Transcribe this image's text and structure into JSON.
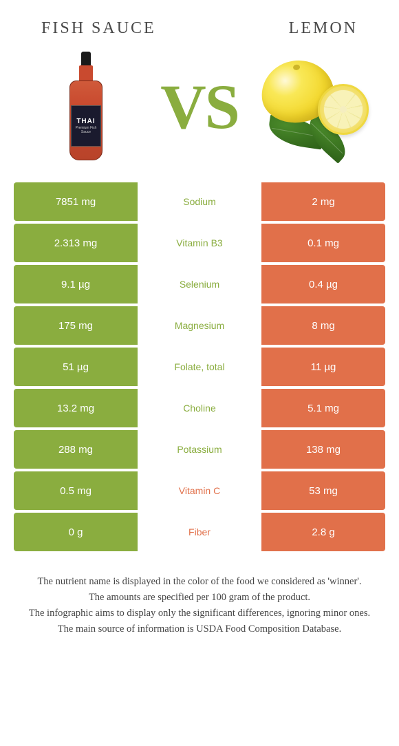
{
  "header": {
    "left_title": "Fish sauce",
    "right_title": "Lemon"
  },
  "hero": {
    "vs_text": "VS",
    "bottle_brand": "THAI",
    "bottle_sub": "Premium Fish Sauce"
  },
  "colors": {
    "left_col": "#8aad3f",
    "right_col": "#e1704a",
    "left_label": "#8aad3f",
    "right_label": "#e1704a"
  },
  "nutrients": [
    {
      "name": "Sodium",
      "left": "7851 mg",
      "right": "2 mg",
      "winner": "left"
    },
    {
      "name": "Vitamin B3",
      "left": "2.313 mg",
      "right": "0.1 mg",
      "winner": "left"
    },
    {
      "name": "Selenium",
      "left": "9.1 µg",
      "right": "0.4 µg",
      "winner": "left"
    },
    {
      "name": "Magnesium",
      "left": "175 mg",
      "right": "8 mg",
      "winner": "left"
    },
    {
      "name": "Folate, total",
      "left": "51 µg",
      "right": "11 µg",
      "winner": "left"
    },
    {
      "name": "Choline",
      "left": "13.2 mg",
      "right": "5.1 mg",
      "winner": "left"
    },
    {
      "name": "Potassium",
      "left": "288 mg",
      "right": "138 mg",
      "winner": "left"
    },
    {
      "name": "Vitamin C",
      "left": "0.5 mg",
      "right": "53 mg",
      "winner": "right"
    },
    {
      "name": "Fiber",
      "left": "0 g",
      "right": "2.8 g",
      "winner": "right"
    }
  ],
  "footer": {
    "line1": "The nutrient name is displayed in the color of the food we considered as 'winner'.",
    "line2": "The amounts are specified per 100 gram of the product.",
    "line3": "The infographic aims to display only the significant differences, ignoring minor ones.",
    "line4": "The main source of information is USDA Food Composition Database."
  }
}
